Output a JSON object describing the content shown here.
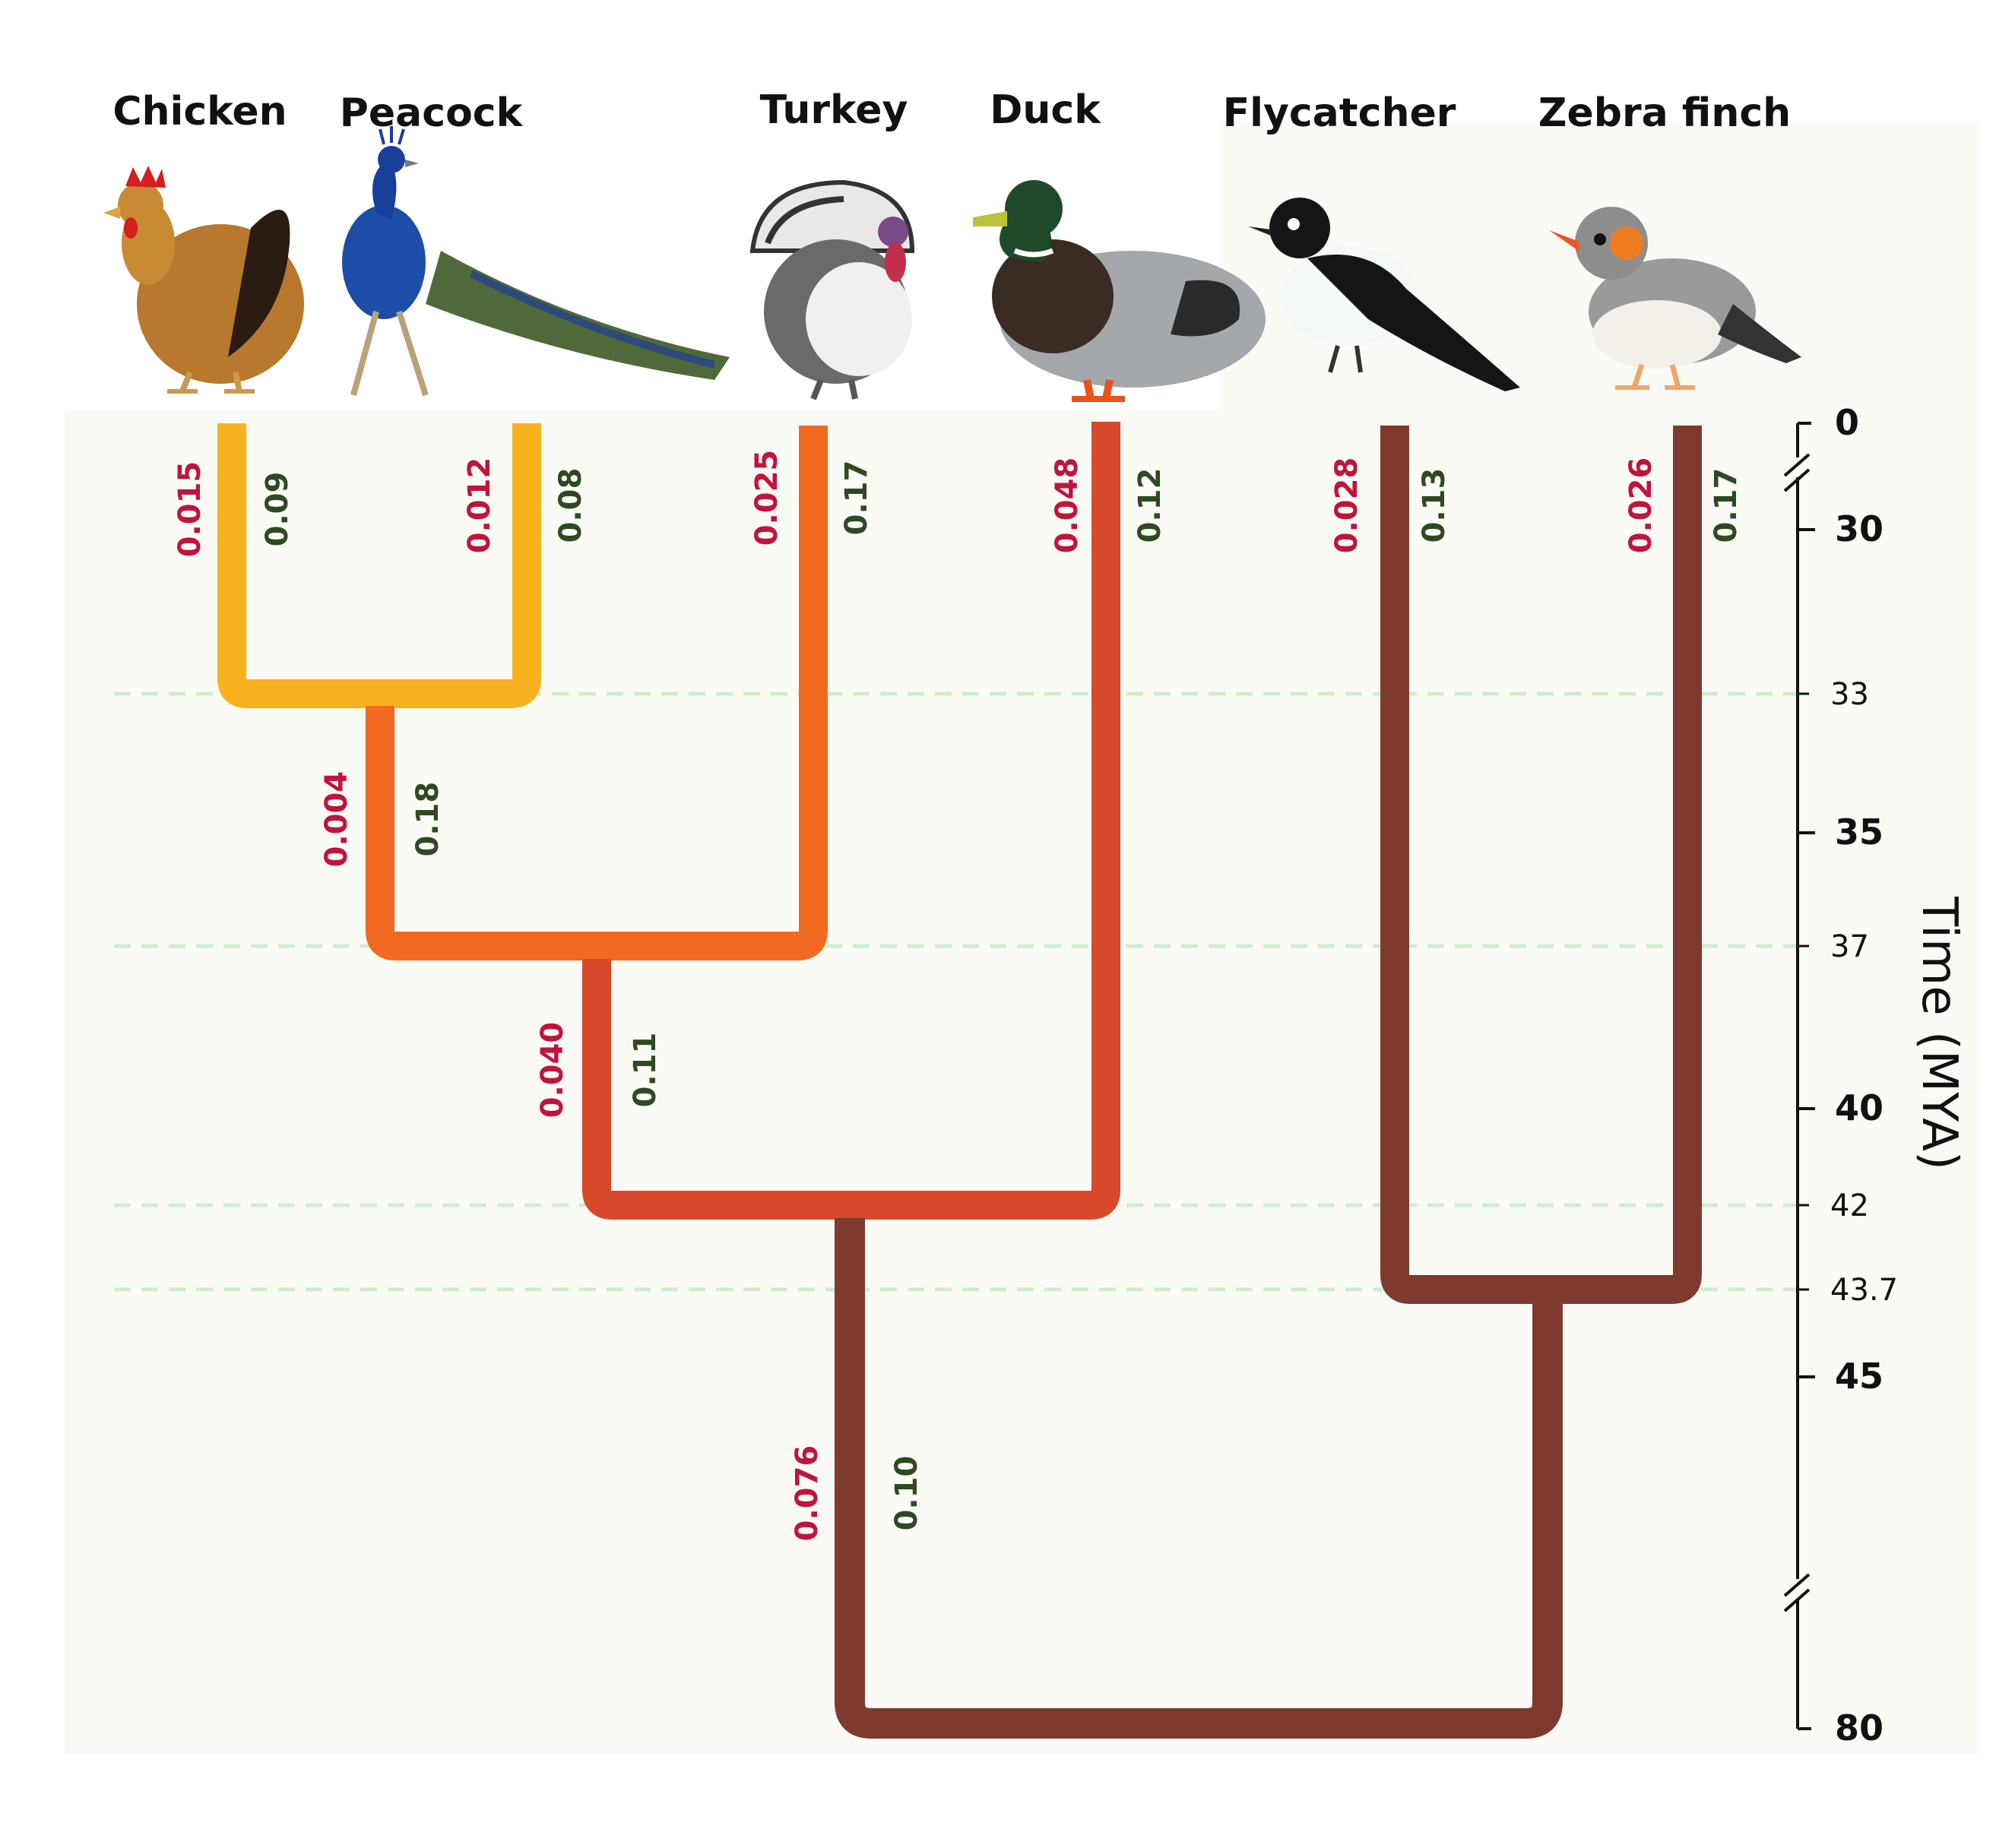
{
  "species": [
    {
      "name": "Chicken",
      "icon": "chicken-icon",
      "red": "0.015",
      "green": "0.09"
    },
    {
      "name": "Peacock",
      "icon": "peacock-icon",
      "red": "0.012",
      "green": "0.08"
    },
    {
      "name": "Turkey",
      "icon": "turkey-icon",
      "red": "0.025",
      "green": "0.17"
    },
    {
      "name": "Duck",
      "icon": "duck-icon",
      "red": "0.048",
      "green": "0.12"
    },
    {
      "name": "Flycatcher",
      "icon": "flycatcher-icon",
      "red": "0.028",
      "green": "0.13"
    },
    {
      "name": "Zebra finch",
      "icon": "zebra-finch-icon",
      "red": "0.026",
      "green": "0.17"
    }
  ],
  "internal_branches": [
    {
      "red": "0.004",
      "green": "0.18"
    },
    {
      "red": "0.040",
      "green": "0.11"
    },
    {
      "red": "0.076",
      "green": "0.10"
    }
  ],
  "axis": {
    "title": "Time (MYA)",
    "ticks_major": [
      "0",
      "30",
      "35",
      "40",
      "45",
      "80"
    ],
    "ticks_minor": [
      "33",
      "37",
      "42",
      "43.7"
    ]
  },
  "colors": {
    "branch_yellow": "#F7B21E",
    "branch_orange": "#F26A21",
    "branch_redorange": "#D8482A",
    "branch_brown": "#7E3A2F",
    "label_red": "#C0143C",
    "label_green": "#2E4A22",
    "gridline": "#cfeccf",
    "panel": "#fbfbf6"
  }
}
